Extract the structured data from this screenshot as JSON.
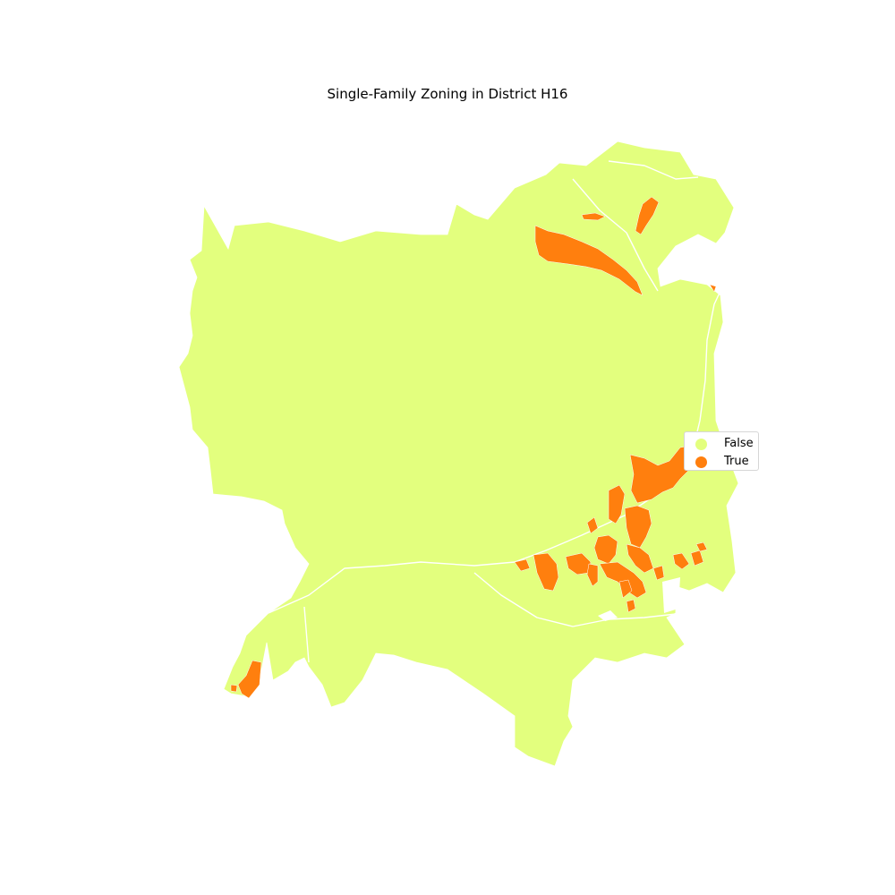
{
  "title": "Single-Family Zoning in District H16",
  "legend": {
    "items": [
      {
        "label": "False",
        "color": "#e3ff7e"
      },
      {
        "label": "True",
        "color": "#ff7f0e"
      }
    ]
  }
}
